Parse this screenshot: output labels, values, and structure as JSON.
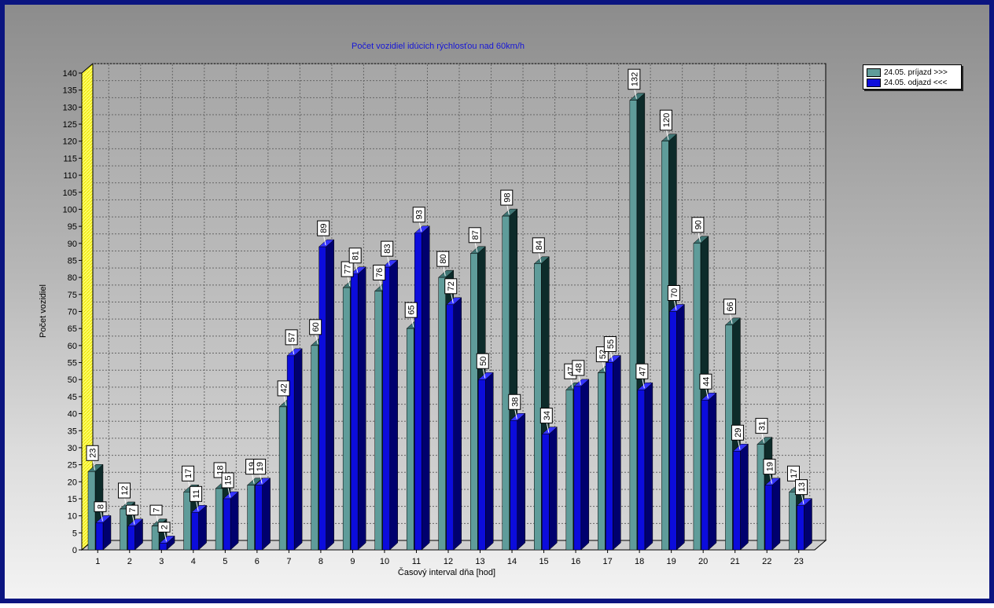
{
  "chart_data": {
    "type": "bar",
    "title": "Počet vozidiel idúcich rýchlosťou nad 60km/h",
    "xlabel": "Časový interval dňa [hod]",
    "ylabel": "Počet vozidiel",
    "ylim": [
      0,
      140
    ],
    "ytick_step": 5,
    "grid": true,
    "legend_position": "top-right",
    "categories": [
      "1",
      "2",
      "3",
      "4",
      "5",
      "6",
      "7",
      "8",
      "9",
      "10",
      "11",
      "12",
      "13",
      "14",
      "15",
      "16",
      "17",
      "18",
      "19",
      "20",
      "21",
      "22",
      "23"
    ],
    "series": [
      {
        "name": "24.05.  príjazd >>>",
        "color": "#5f9c9a",
        "values": [
          23,
          12,
          7,
          17,
          18,
          19,
          42,
          60,
          77,
          76,
          65,
          80,
          87,
          98,
          84,
          47,
          52,
          132,
          120,
          90,
          66,
          31,
          17
        ]
      },
      {
        "name": "24.05.  odjazd <<<",
        "color": "#0c0cdc",
        "values": [
          8,
          7,
          2,
          11,
          15,
          19,
          57,
          89,
          81,
          83,
          93,
          72,
          50,
          38,
          34,
          48,
          55,
          47,
          70,
          44,
          29,
          19,
          13
        ]
      }
    ]
  }
}
